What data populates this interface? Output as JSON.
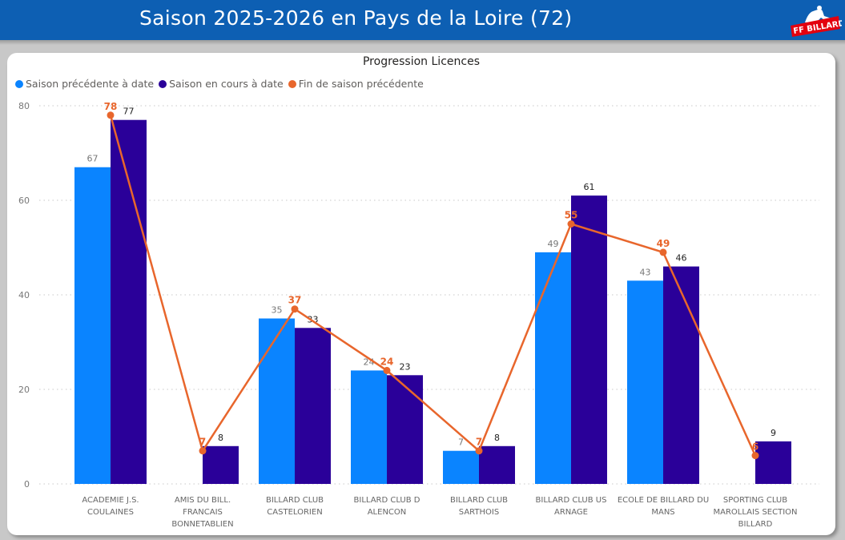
{
  "header": {
    "title": "Saison 2025-2026 en Pays de la Loire (72)",
    "logo_text": "FF BILLARD",
    "brand_color": "#0d5fb3"
  },
  "colors": {
    "prev_to_date": "#0a84ff",
    "current_to_date": "#2a0099",
    "end_prev_season": "#e8662c"
  },
  "chart_data": {
    "type": "bar",
    "title": "Progression Licences",
    "xlabel": "",
    "ylabel": "",
    "ylim": [
      0,
      80
    ],
    "yticks": [
      0,
      20,
      40,
      60,
      80
    ],
    "grid": true,
    "legend_position": "top-left",
    "categories": [
      [
        "ACADEMIE J.S.",
        "COULAINES"
      ],
      [
        "AMIS DU BILL.",
        "FRANCAIS",
        "BONNETABLIEN"
      ],
      [
        "BILLARD CLUB",
        "CASTELORIEN"
      ],
      [
        "BILLARD CLUB D",
        "ALENCON"
      ],
      [
        "BILLARD CLUB",
        "SARTHOIS"
      ],
      [
        "BILLARD CLUB US",
        "ARNAGE"
      ],
      [
        "ECOLE DE BILLARD DU",
        "MANS"
      ],
      [
        "SPORTING CLUB",
        "MAROLLAIS SECTION",
        "BILLARD"
      ]
    ],
    "series": [
      {
        "name": "Saison précédente à date",
        "type": "bar",
        "values": [
          67,
          null,
          35,
          24,
          7,
          49,
          43,
          null
        ]
      },
      {
        "name": "Saison en cours à date",
        "type": "bar",
        "values": [
          77,
          8,
          33,
          23,
          8,
          61,
          46,
          9
        ]
      },
      {
        "name": "Fin de saison précédente",
        "type": "line",
        "values": [
          78,
          7,
          37,
          24,
          7,
          55,
          49,
          6
        ]
      }
    ]
  }
}
